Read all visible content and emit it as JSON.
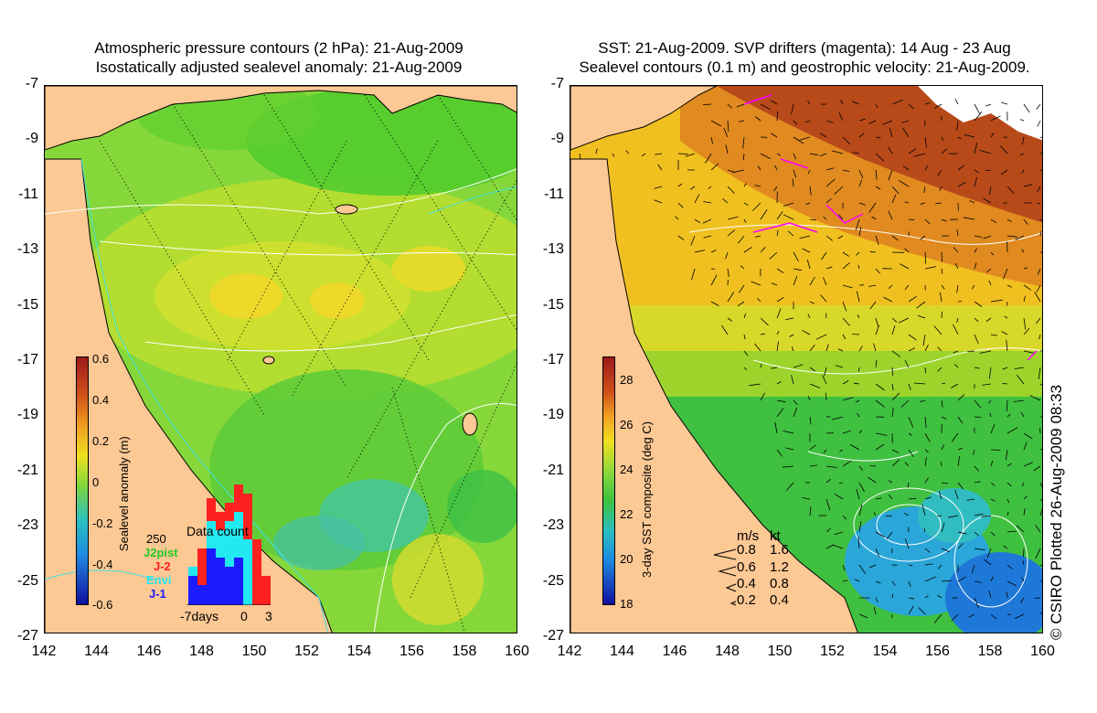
{
  "left_panel": {
    "title_line1": "Atmospheric pressure contours (2 hPa): 21-Aug-2009",
    "title_line2": "Isostatically adjusted sealevel anomaly: 21-Aug-2009",
    "colorbar": {
      "label": "Sealevel anomaly (m)",
      "ticks": [
        "0.6",
        "0.4",
        "0.2",
        "0",
        "-0.2",
        "-0.4",
        "-0.6"
      ],
      "range": [
        -0.6,
        0.6
      ]
    },
    "data_count": {
      "title": "Data count",
      "ymax_label": "250",
      "legend": [
        {
          "name": "J2pist",
          "color": "#22cc22"
        },
        {
          "name": "J-2",
          "color": "#ff2020"
        },
        {
          "name": "Envi",
          "color": "#22e8f0"
        },
        {
          "name": "J-1",
          "color": "#1b1bff"
        }
      ],
      "x_labels": [
        "-7days",
        "0",
        "3"
      ]
    }
  },
  "right_panel": {
    "title_line1": "SST: 21-Aug-2009. SVP drifters (magenta): 14 Aug - 23 Aug",
    "title_line2": "Sealevel contours (0.1 m) and geostrophic velocity: 21-Aug-2009.",
    "colorbar": {
      "label": "3-day SST composite (deg C)",
      "ticks": [
        "28",
        "26",
        "24",
        "22",
        "20",
        "18"
      ],
      "range": [
        18,
        29
      ]
    },
    "velocity_legend": {
      "header_ms": "m/s",
      "header_kt": "kt",
      "rows": [
        {
          "ms": "0.8",
          "kt": "1.6"
        },
        {
          "ms": "0.6",
          "kt": "1.2"
        },
        {
          "ms": "0.4",
          "kt": "0.8"
        },
        {
          "ms": "0.2",
          "kt": "0.4"
        }
      ]
    }
  },
  "axes": {
    "lat_labels": [
      "-7",
      "-9",
      "-11",
      "-13",
      "-15",
      "-17",
      "-19",
      "-21",
      "-23",
      "-25",
      "-27"
    ],
    "lon_labels": [
      "142",
      "144",
      "146",
      "148",
      "150",
      "152",
      "154",
      "156",
      "158",
      "160"
    ]
  },
  "credit": "© CSIRO Plotted 26-Aug-2009 08:33",
  "colors": {
    "land": "#fcc894",
    "coast": "#000000",
    "contour": "#ffffff",
    "drifter": "#ff00ff",
    "cyan_contour": "#40e0e0"
  }
}
